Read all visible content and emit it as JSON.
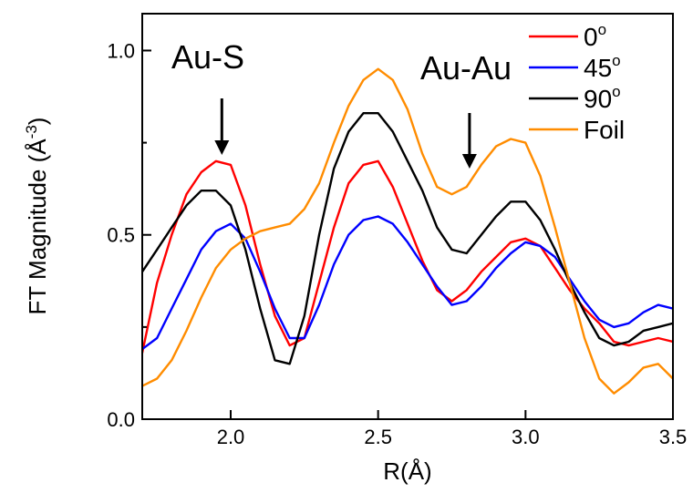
{
  "chart_data": {
    "type": "line",
    "xlabel": "R(Å)",
    "ylabel": {
      "main": "FT Magnitude (Å",
      "sup": "-3",
      "close": ")"
    },
    "xlim": [
      1.7,
      3.5
    ],
    "ylim": [
      0.0,
      1.1
    ],
    "xticks": [
      {
        "value": 2.0,
        "label": "2.0"
      },
      {
        "value": 2.5,
        "label": "2.5"
      },
      {
        "value": 3.0,
        "label": "3.0"
      },
      {
        "value": 3.5,
        "label": "3.5"
      }
    ],
    "yticks": [
      {
        "value": 0.0,
        "label": "0.0"
      },
      {
        "value": 0.5,
        "label": "0.5"
      },
      {
        "value": 1.0,
        "label": "1.0"
      }
    ],
    "grid": false,
    "legend_position": "top-right",
    "annotations": [
      {
        "text": "Au-S",
        "x": 1.97,
        "y": 0.72
      },
      {
        "text": "Au-Au",
        "x": 2.81,
        "y": 0.67
      }
    ],
    "series": [
      {
        "name": "0",
        "name_sup": "o",
        "color": "#ff0000",
        "x": [
          1.7,
          1.75,
          1.8,
          1.85,
          1.9,
          1.95,
          2.0,
          2.05,
          2.1,
          2.15,
          2.2,
          2.25,
          2.3,
          2.35,
          2.4,
          2.45,
          2.5,
          2.55,
          2.6,
          2.65,
          2.7,
          2.75,
          2.8,
          2.85,
          2.9,
          2.95,
          3.0,
          3.05,
          3.1,
          3.15,
          3.2,
          3.25,
          3.3,
          3.35,
          3.4,
          3.45,
          3.5
        ],
        "values": [
          0.18,
          0.37,
          0.5,
          0.61,
          0.67,
          0.7,
          0.69,
          0.58,
          0.42,
          0.28,
          0.2,
          0.22,
          0.37,
          0.52,
          0.64,
          0.69,
          0.7,
          0.63,
          0.53,
          0.43,
          0.35,
          0.32,
          0.35,
          0.4,
          0.44,
          0.48,
          0.49,
          0.47,
          0.41,
          0.35,
          0.3,
          0.26,
          0.21,
          0.2,
          0.21,
          0.22,
          0.21
        ]
      },
      {
        "name": "45",
        "name_sup": "o",
        "color": "#0000ff",
        "x": [
          1.7,
          1.75,
          1.8,
          1.85,
          1.9,
          1.95,
          2.0,
          2.05,
          2.1,
          2.15,
          2.2,
          2.25,
          2.3,
          2.35,
          2.4,
          2.45,
          2.5,
          2.55,
          2.6,
          2.65,
          2.7,
          2.75,
          2.8,
          2.85,
          2.9,
          2.95,
          3.0,
          3.05,
          3.1,
          3.15,
          3.2,
          3.25,
          3.3,
          3.35,
          3.4,
          3.45,
          3.5
        ],
        "values": [
          0.19,
          0.22,
          0.3,
          0.38,
          0.46,
          0.51,
          0.53,
          0.49,
          0.4,
          0.3,
          0.22,
          0.22,
          0.31,
          0.42,
          0.5,
          0.54,
          0.55,
          0.53,
          0.48,
          0.42,
          0.36,
          0.31,
          0.32,
          0.36,
          0.41,
          0.45,
          0.48,
          0.47,
          0.44,
          0.38,
          0.32,
          0.27,
          0.25,
          0.26,
          0.29,
          0.31,
          0.3
        ]
      },
      {
        "name": "90",
        "name_sup": "o",
        "color": "#000000",
        "x": [
          1.7,
          1.75,
          1.8,
          1.85,
          1.9,
          1.95,
          2.0,
          2.05,
          2.1,
          2.15,
          2.2,
          2.25,
          2.3,
          2.35,
          2.4,
          2.45,
          2.5,
          2.55,
          2.6,
          2.65,
          2.7,
          2.75,
          2.8,
          2.85,
          2.9,
          2.95,
          3.0,
          3.05,
          3.1,
          3.15,
          3.2,
          3.25,
          3.3,
          3.35,
          3.4,
          3.45,
          3.5
        ],
        "values": [
          0.4,
          0.46,
          0.52,
          0.58,
          0.62,
          0.62,
          0.58,
          0.46,
          0.3,
          0.16,
          0.15,
          0.28,
          0.5,
          0.68,
          0.78,
          0.83,
          0.83,
          0.78,
          0.7,
          0.62,
          0.52,
          0.46,
          0.45,
          0.5,
          0.55,
          0.59,
          0.59,
          0.54,
          0.46,
          0.37,
          0.29,
          0.22,
          0.2,
          0.21,
          0.24,
          0.25,
          0.26
        ]
      },
      {
        "name": "Foil",
        "name_sup": "",
        "color": "#ff8c00",
        "x": [
          1.7,
          1.75,
          1.8,
          1.85,
          1.9,
          1.95,
          2.0,
          2.05,
          2.1,
          2.15,
          2.2,
          2.25,
          2.3,
          2.35,
          2.4,
          2.45,
          2.5,
          2.55,
          2.6,
          2.65,
          2.7,
          2.75,
          2.8,
          2.85,
          2.9,
          2.95,
          3.0,
          3.05,
          3.1,
          3.15,
          3.2,
          3.25,
          3.3,
          3.35,
          3.4,
          3.45,
          3.5
        ],
        "values": [
          0.09,
          0.11,
          0.16,
          0.24,
          0.33,
          0.41,
          0.46,
          0.49,
          0.51,
          0.52,
          0.53,
          0.57,
          0.64,
          0.75,
          0.85,
          0.92,
          0.95,
          0.92,
          0.84,
          0.72,
          0.63,
          0.61,
          0.63,
          0.69,
          0.74,
          0.76,
          0.75,
          0.66,
          0.52,
          0.37,
          0.22,
          0.11,
          0.07,
          0.1,
          0.14,
          0.15,
          0.11
        ]
      }
    ]
  }
}
